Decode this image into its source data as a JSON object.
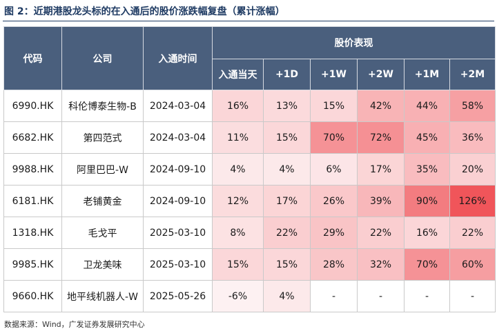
{
  "title": "图 2：近期港股龙头标的在入通后的股价涨跌幅复盘（累计涨幅）",
  "headers": {
    "code": "代码",
    "company": "公司",
    "entry_date": "入通时间",
    "performance_group": "股价表现",
    "periods": [
      "入通当天",
      "+1D",
      "+1W",
      "+2W",
      "+1M",
      "+2M"
    ]
  },
  "rows": [
    {
      "code": "6990.HK",
      "company": "科伦博泰生物-B",
      "date": "2024-03-04",
      "values": [
        "16%",
        "13%",
        "15%",
        "42%",
        "44%",
        "58%"
      ]
    },
    {
      "code": "6682.HK",
      "company": "第四范式",
      "date": "2024-03-04",
      "values": [
        "11%",
        "15%",
        "70%",
        "72%",
        "45%",
        "36%"
      ]
    },
    {
      "code": "9988.HK",
      "company": "阿里巴巴-W",
      "date": "2024-09-10",
      "values": [
        "4%",
        "4%",
        "6%",
        "17%",
        "35%",
        "20%"
      ]
    },
    {
      "code": "6181.HK",
      "company": "老铺黄金",
      "date": "2024-09-10",
      "values": [
        "12%",
        "17%",
        "26%",
        "39%",
        "90%",
        "126%"
      ]
    },
    {
      "code": "1318.HK",
      "company": "毛戈平",
      "date": "2025-03-10",
      "values": [
        "8%",
        "22%",
        "29%",
        "22%",
        "16%",
        "22%"
      ]
    },
    {
      "code": "9985.HK",
      "company": "卫龙美味",
      "date": "2025-03-10",
      "values": [
        "15%",
        "15%",
        "28%",
        "32%",
        "70%",
        "60%"
      ]
    },
    {
      "code": "9660.HK",
      "company": "地平线机器人-W",
      "date": "2025-05-26",
      "values": [
        "-6%",
        "4%",
        "-",
        "-",
        "-",
        "-"
      ]
    }
  ],
  "source": "数据来源：Wind，广发证券发展研究中心",
  "colors": {
    "header_bg": "#4a5f7d",
    "heat_low": "#fdf1f2",
    "heat_high": "#f0555a",
    "title": "#1f3b63"
  }
}
